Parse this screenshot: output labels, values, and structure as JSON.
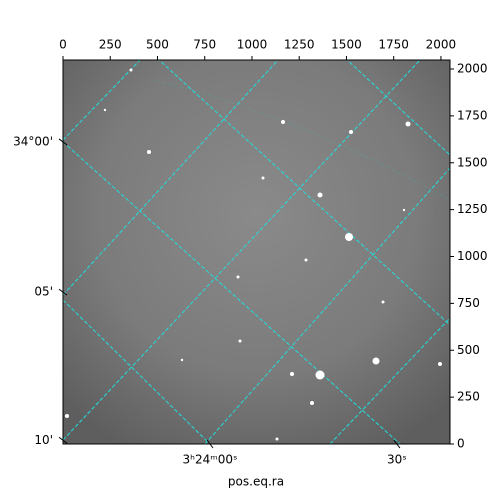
{
  "chart_data": {
    "type": "image",
    "xlabel": "pos.eq.ra",
    "xlim": [
      0,
      2048
    ],
    "ylim": [
      0,
      2048
    ],
    "xticks": [
      0,
      250,
      500,
      750,
      1000,
      1250,
      1500,
      1750,
      2000
    ],
    "yticks": [
      0,
      250,
      500,
      750,
      1000,
      1250,
      1500,
      1750,
      2000
    ],
    "ra_ticks": [
      {
        "value": 778,
        "label": "3ʰ24ᵐ00ˢ"
      },
      {
        "value": 1767,
        "label": "30ˢ"
      }
    ],
    "dec_ticks": [
      {
        "value": 1611,
        "label": "34°00'"
      },
      {
        "value": 810,
        "label": "05'"
      },
      {
        "value": 20,
        "label": "10'"
      }
    ]
  }
}
